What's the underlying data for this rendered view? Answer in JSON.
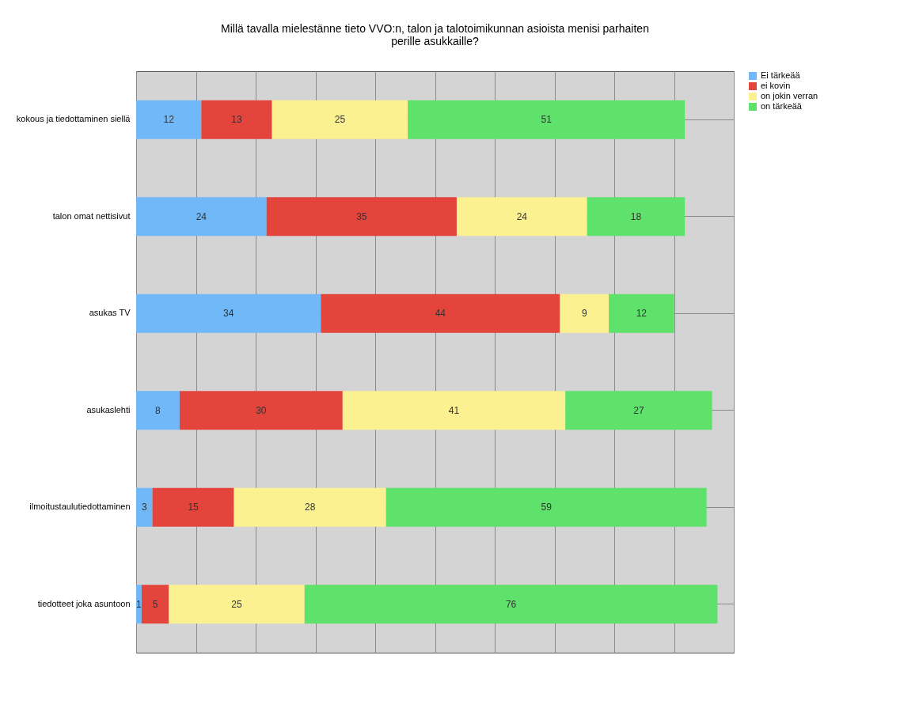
{
  "chart_data": {
    "type": "bar",
    "orientation": "horizontal",
    "stacked": true,
    "title": "Millä tavalla mielestänne tieto VVO:n, talon ja talotoimikunnan asioista menisi parhaiten perille asukkaille?",
    "categories": [
      "kokous ja tiedottaminen siellä",
      "talon omat nettisivut",
      "asukas TV",
      "asukaslehti",
      "ilmoitustaulutiedottaminen",
      "tiedotteet joka asuntoon"
    ],
    "series": [
      {
        "name": "Ei tärkeää",
        "color": "#70b8f8",
        "values": [
          12,
          24,
          34,
          8,
          3,
          1
        ]
      },
      {
        "name": "ei kovin",
        "color": "#e3443c",
        "values": [
          13,
          35,
          44,
          30,
          15,
          5
        ]
      },
      {
        "name": "on jokin verran",
        "color": "#fbf191",
        "values": [
          25,
          24,
          9,
          41,
          28,
          25
        ]
      },
      {
        "name": "on tärkeää",
        "color": "#5ee26b",
        "values": [
          51,
          18,
          12,
          27,
          59,
          76
        ]
      }
    ],
    "xlim": [
      0,
      110
    ],
    "xticks": [
      {
        "value": 0,
        "label": null
      },
      {
        "value": 11,
        "label": null
      },
      {
        "value": 22,
        "label": null
      },
      {
        "value": 33,
        "label": null
      },
      {
        "value": 44,
        "label": null
      },
      {
        "value": 55,
        "label": null
      },
      {
        "value": 66,
        "label": null
      },
      {
        "value": 77,
        "label": null
      },
      {
        "value": 88,
        "label": null
      },
      {
        "value": 99,
        "label": null
      },
      {
        "value": 110,
        "label": null
      }
    ],
    "tick_labels": "y",
    "grid": true,
    "legend": "right",
    "data_labels": true
  }
}
